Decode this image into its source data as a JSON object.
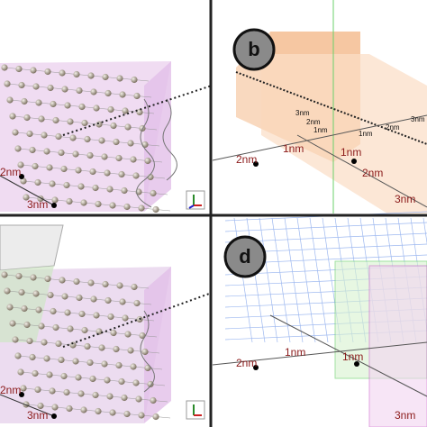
{
  "panel_a": {
    "axis_labels": [
      "2nm",
      "3nm"
    ]
  },
  "panel_b": {
    "label": "b",
    "axis_labels": [
      "2nm",
      "1nm",
      "1nm",
      "2nm",
      "3nm"
    ],
    "small_labels": [
      "3nm",
      "2nm",
      "1nm",
      "1nm",
      "2nm",
      "3nm"
    ]
  },
  "panel_c": {
    "axis_labels": [
      "2nm",
      "3nm"
    ]
  },
  "panel_d": {
    "label": "d",
    "axis_labels": [
      "2nm",
      "1nm",
      "1nm",
      "3nm"
    ]
  }
}
